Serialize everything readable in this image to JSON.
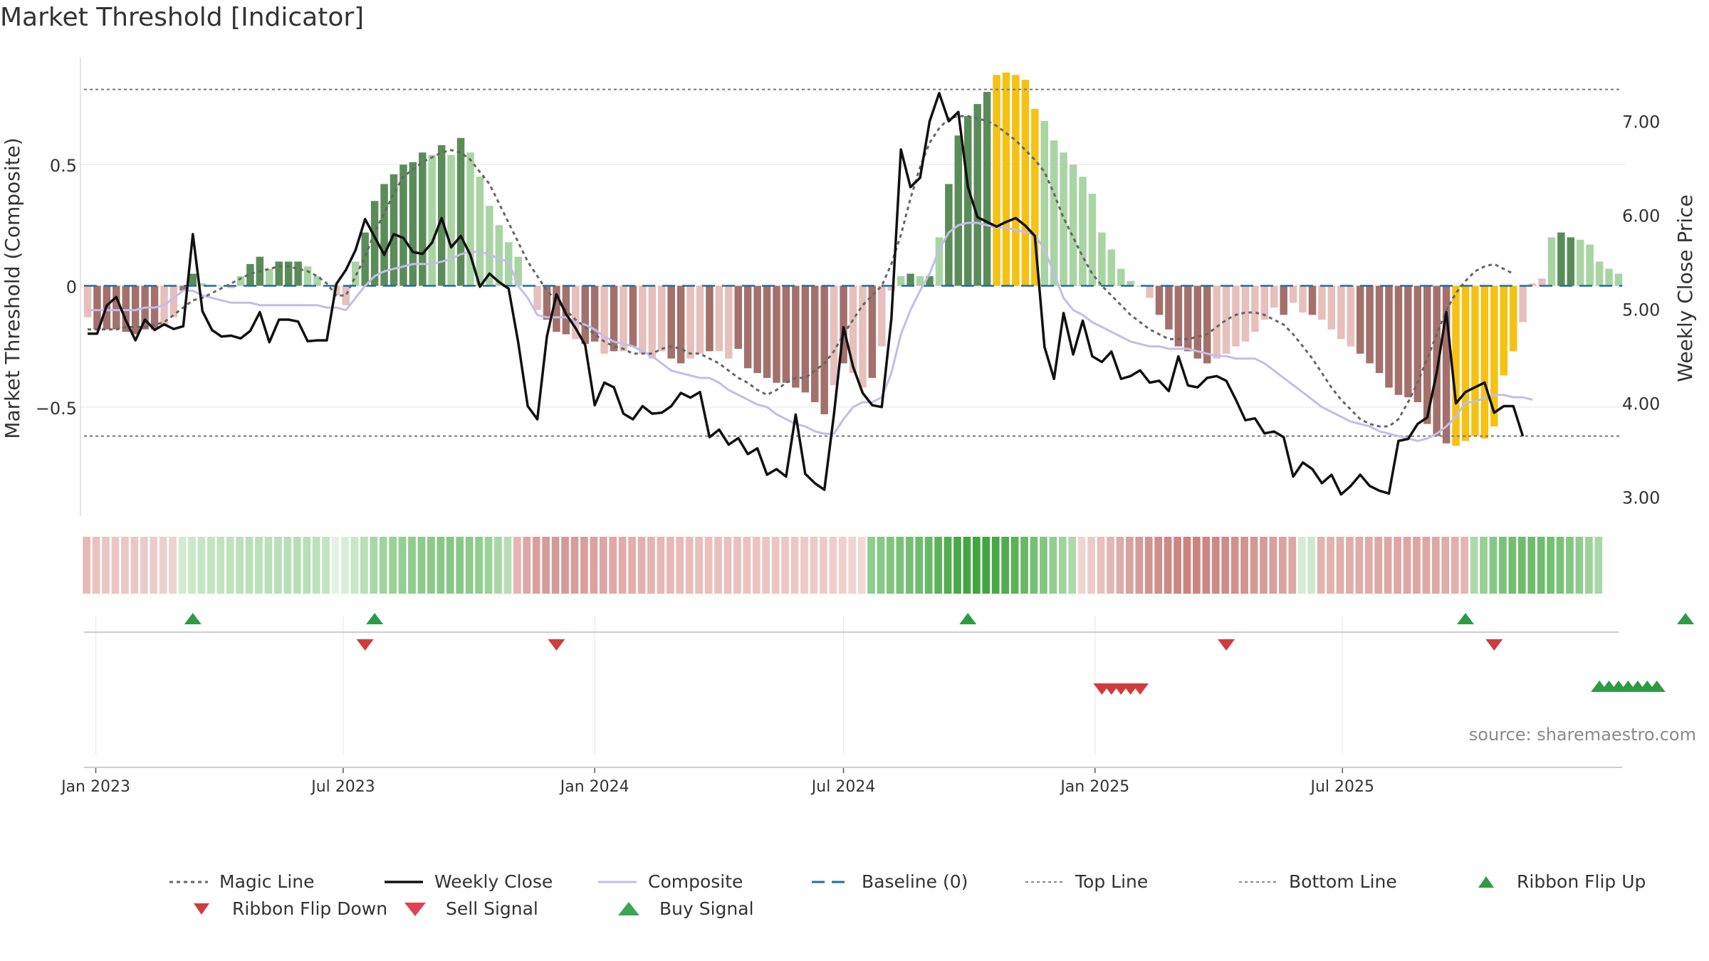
{
  "title": "Market Threshold [Indicator]",
  "source": "source: sharemaestro.com",
  "colors": {
    "strong_green": "#5a8c5a",
    "light_green": "#a9d4a3",
    "strong_red": "#a3706b",
    "light_red": "#e7bfbb",
    "gold": "#f5c113",
    "weekly_close": "#111111",
    "composite": "#c3bde8",
    "magic_line": "#666666",
    "baseline": "#1f6f9f",
    "signal_up": "#2e9b44",
    "signal_down": "#d23b3b"
  },
  "chart_data": {
    "type": "bar",
    "title": "Market Threshold [Indicator]",
    "ylabel_left": "Market Threshold (Composite)",
    "ylabel_right": "Weekly Close Price",
    "x_start": "2022-12-26",
    "frequency": "weekly",
    "x_ticks": [
      "Jan 2023",
      "Jul 2023",
      "Jan 2024",
      "Jul 2024",
      "Jan 2025",
      "Jul 2025"
    ],
    "x_tick_dates": [
      "2023-01-01",
      "2023-07-01",
      "2024-01-01",
      "2024-07-01",
      "2025-01-01",
      "2025-07-01"
    ],
    "ylim_left": [
      -0.95,
      0.95
    ],
    "y_ticks_left": [
      {
        "value": 0.5,
        "label": "0.5"
      },
      {
        "value": 0,
        "label": "0"
      },
      {
        "value": -0.5,
        "label": "−0.5"
      }
    ],
    "ylim_right": [
      2.8,
      7.7
    ],
    "y_ticks_right": [
      {
        "value": 7,
        "label": "7.00"
      },
      {
        "value": 6,
        "label": "6.00"
      },
      {
        "value": 5,
        "label": "5.00"
      },
      {
        "value": 4,
        "label": "4.00"
      },
      {
        "value": 3,
        "label": "3.00"
      }
    ],
    "top_line": 0.81,
    "bottom_line": -0.62,
    "baseline": 0,
    "histogram": [
      -0.13,
      -0.18,
      -0.18,
      -0.18,
      -0.19,
      -0.2,
      -0.18,
      -0.18,
      -0.16,
      -0.13,
      -0.02,
      0.05,
      0.01,
      0.0,
      0.0,
      -0.01,
      0.04,
      0.09,
      0.12,
      0.07,
      0.1,
      0.1,
      0.1,
      0.08,
      0.04,
      0.0,
      -0.04,
      -0.08,
      0.1,
      0.22,
      0.35,
      0.42,
      0.46,
      0.5,
      0.51,
      0.55,
      0.54,
      0.58,
      0.54,
      0.61,
      0.55,
      0.45,
      0.33,
      0.25,
      0.18,
      0.12,
      0.0,
      -0.1,
      -0.14,
      -0.19,
      -0.2,
      -0.22,
      -0.24,
      -0.23,
      -0.28,
      -0.27,
      -0.27,
      -0.25,
      -0.28,
      -0.3,
      -0.27,
      -0.3,
      -0.32,
      -0.3,
      -0.28,
      -0.27,
      -0.27,
      -0.3,
      -0.26,
      -0.34,
      -0.36,
      -0.38,
      -0.4,
      -0.4,
      -0.42,
      -0.44,
      -0.48,
      -0.53,
      -0.41,
      -0.32,
      -0.36,
      -0.42,
      -0.38,
      -0.25,
      -0.02,
      0.04,
      0.05,
      0.04,
      0.04,
      0.2,
      0.42,
      0.62,
      0.7,
      0.75,
      0.8,
      0.87,
      0.88,
      0.87,
      0.85,
      0.73,
      0.68,
      0.6,
      0.55,
      0.5,
      0.45,
      0.38,
      0.22,
      0.15,
      0.07,
      0.02,
      0.0,
      -0.05,
      -0.12,
      -0.18,
      -0.25,
      -0.27,
      -0.3,
      -0.32,
      -0.3,
      -0.28,
      -0.25,
      -0.23,
      -0.19,
      -0.14,
      -0.09,
      -0.12,
      -0.07,
      -0.11,
      -0.12,
      -0.14,
      -0.18,
      -0.22,
      -0.25,
      -0.28,
      -0.32,
      -0.36,
      -0.42,
      -0.45,
      -0.46,
      -0.48,
      -0.57,
      -0.62,
      -0.65,
      -0.66,
      -0.64,
      -0.62,
      -0.63,
      -0.58,
      -0.37,
      -0.27,
      -0.15,
      0.01,
      0.03,
      0.2,
      0.22,
      0.2,
      0.19,
      0.17,
      0.1,
      0.07,
      0.05
    ],
    "bar_colors": [
      "lr",
      "sr",
      "sr",
      "sr",
      "sr",
      "sr",
      "sr",
      "sr",
      "lr",
      "lr",
      "sr",
      "sg",
      "lg",
      "lg",
      "lg",
      "lr",
      "lg",
      "sg",
      "sg",
      "lg",
      "sg",
      "sg",
      "sg",
      "lg",
      "lg",
      "lg",
      "lr",
      "lr",
      "lg",
      "sg",
      "sg",
      "sg",
      "sg",
      "sg",
      "sg",
      "sg",
      "lg",
      "sg",
      "lg",
      "sg",
      "lg",
      "lg",
      "lg",
      "lg",
      "lg",
      "lg",
      "lg",
      "lr",
      "sr",
      "sr",
      "sr",
      "lr",
      "sr",
      "sr",
      "lr",
      "sr",
      "lr",
      "sr",
      "lr",
      "lr",
      "lr",
      "sr",
      "sr",
      "lr",
      "lr",
      "sr",
      "lr",
      "lr",
      "sr",
      "sr",
      "sr",
      "sr",
      "sr",
      "sr",
      "sr",
      "sr",
      "sr",
      "sr",
      "lr",
      "sr",
      "lr",
      "lr",
      "sr",
      "lr",
      "lr",
      "lg",
      "sg",
      "lg",
      "sg",
      "lg",
      "sg",
      "sg",
      "sg",
      "sg",
      "sg",
      "gold",
      "gold",
      "gold",
      "gold",
      "gold",
      "lg",
      "lg",
      "lg",
      "lg",
      "lg",
      "lg",
      "lg",
      "lg",
      "lg",
      "lg",
      "lg",
      "lr",
      "sr",
      "sr",
      "sr",
      "sr",
      "sr",
      "sr",
      "lr",
      "lr",
      "lr",
      "lr",
      "lr",
      "lr",
      "lr",
      "sr",
      "lr",
      "lr",
      "sr",
      "lr",
      "lr",
      "lr",
      "lr",
      "sr",
      "sr",
      "sr",
      "sr",
      "sr",
      "sr",
      "sr",
      "sr",
      "sr",
      "sr",
      "gold",
      "gold",
      "gold",
      "gold",
      "gold",
      "gold",
      "gold",
      "lr",
      "lr",
      "lr",
      "lg",
      "sg",
      "sg",
      "lg",
      "lg",
      "lg",
      "lg",
      "lg"
    ],
    "weekly_close": [
      4.74,
      4.74,
      5.04,
      5.13,
      4.88,
      4.67,
      4.89,
      4.78,
      4.84,
      4.79,
      4.82,
      5.8,
      4.98,
      4.78,
      4.71,
      4.72,
      4.69,
      4.77,
      4.97,
      4.65,
      4.89,
      4.89,
      4.87,
      4.66,
      4.67,
      4.67,
      5.27,
      5.42,
      5.63,
      5.96,
      5.77,
      5.58,
      5.8,
      5.76,
      5.61,
      5.59,
      5.71,
      5.97,
      5.66,
      5.78,
      5.58,
      5.24,
      5.38,
      5.29,
      5.22,
      4.65,
      3.97,
      3.83,
      4.71,
      5.16,
      4.95,
      4.8,
      4.62,
      3.98,
      4.22,
      4.17,
      3.89,
      3.83,
      3.97,
      3.89,
      3.9,
      3.97,
      4.11,
      4.06,
      4.12,
      3.64,
      3.72,
      3.56,
      3.63,
      3.46,
      3.52,
      3.24,
      3.3,
      3.22,
      3.88,
      3.25,
      3.15,
      3.08,
      3.88,
      4.81,
      4.39,
      4.11,
      3.98,
      3.96,
      4.9,
      6.7,
      6.3,
      6.4,
      7.0,
      7.3,
      7.0,
      7.1,
      6.3,
      5.98,
      5.93,
      5.88,
      5.93,
      5.97,
      5.89,
      5.78,
      4.6,
      4.26,
      4.96,
      4.52,
      4.88,
      4.5,
      4.44,
      4.55,
      4.26,
      4.29,
      4.35,
      4.22,
      4.24,
      4.13,
      4.5,
      4.19,
      4.17,
      4.27,
      4.29,
      4.24,
      4.04,
      3.82,
      3.84,
      3.68,
      3.7,
      3.64,
      3.22,
      3.37,
      3.3,
      3.15,
      3.24,
      3.03,
      3.12,
      3.24,
      3.12,
      3.07,
      3.04,
      3.6,
      3.62,
      3.78,
      3.85,
      4.33,
      4.97,
      4.0,
      4.12,
      4.17,
      4.22,
      3.9,
      3.97,
      3.97,
      3.65
    ],
    "composite": [
      -0.1,
      -0.1,
      -0.1,
      -0.1,
      -0.1,
      -0.1,
      -0.09,
      -0.09,
      -0.08,
      -0.05,
      -0.02,
      -0.02,
      -0.04,
      -0.05,
      -0.06,
      -0.07,
      -0.07,
      -0.07,
      -0.08,
      -0.08,
      -0.08,
      -0.08,
      -0.08,
      -0.08,
      -0.08,
      -0.09,
      -0.09,
      -0.1,
      -0.05,
      0.0,
      0.04,
      0.06,
      0.07,
      0.08,
      0.09,
      0.09,
      0.09,
      0.1,
      0.11,
      0.13,
      0.14,
      0.14,
      0.13,
      0.11,
      0.1,
      0.0,
      -0.05,
      -0.12,
      -0.13,
      -0.13,
      -0.13,
      -0.15,
      -0.16,
      -0.18,
      -0.21,
      -0.23,
      -0.24,
      -0.25,
      -0.27,
      -0.29,
      -0.32,
      -0.35,
      -0.36,
      -0.37,
      -0.38,
      -0.38,
      -0.4,
      -0.43,
      -0.45,
      -0.47,
      -0.49,
      -0.5,
      -0.53,
      -0.55,
      -0.57,
      -0.58,
      -0.6,
      -0.61,
      -0.61,
      -0.55,
      -0.5,
      -0.48,
      -0.48,
      -0.46,
      -0.36,
      -0.2,
      -0.1,
      -0.02,
      0.05,
      0.15,
      0.22,
      0.25,
      0.26,
      0.26,
      0.25,
      0.24,
      0.24,
      0.23,
      0.22,
      0.21,
      0.15,
      0.05,
      -0.05,
      -0.1,
      -0.12,
      -0.15,
      -0.17,
      -0.19,
      -0.21,
      -0.23,
      -0.24,
      -0.25,
      -0.25,
      -0.26,
      -0.26,
      -0.26,
      -0.27,
      -0.28,
      -0.29,
      -0.29,
      -0.3,
      -0.3,
      -0.3,
      -0.32,
      -0.35,
      -0.38,
      -0.41,
      -0.44,
      -0.47,
      -0.5,
      -0.52,
      -0.54,
      -0.56,
      -0.57,
      -0.58,
      -0.6,
      -0.61,
      -0.62,
      -0.63,
      -0.64,
      -0.63,
      -0.61,
      -0.58,
      -0.54,
      -0.48,
      -0.48,
      -0.46,
      -0.45,
      -0.45,
      -0.46,
      -0.46,
      -0.47
    ],
    "magic_line": [
      -0.18,
      -0.18,
      -0.18,
      -0.18,
      -0.17,
      -0.17,
      -0.17,
      -0.16,
      -0.15,
      -0.12,
      -0.09,
      -0.06,
      -0.05,
      -0.03,
      -0.01,
      0.01,
      0.03,
      0.05,
      0.06,
      0.07,
      0.08,
      0.08,
      0.07,
      0.06,
      0.04,
      0.01,
      -0.04,
      -0.04,
      0.04,
      0.12,
      0.22,
      0.3,
      0.38,
      0.45,
      0.48,
      0.51,
      0.53,
      0.55,
      0.56,
      0.55,
      0.52,
      0.47,
      0.42,
      0.34,
      0.26,
      0.18,
      0.1,
      0.04,
      -0.02,
      -0.06,
      -0.1,
      -0.14,
      -0.17,
      -0.2,
      -0.23,
      -0.25,
      -0.26,
      -0.28,
      -0.28,
      -0.28,
      -0.26,
      -0.25,
      -0.26,
      -0.28,
      -0.28,
      -0.3,
      -0.32,
      -0.35,
      -0.38,
      -0.4,
      -0.43,
      -0.45,
      -0.43,
      -0.4,
      -0.38,
      -0.38,
      -0.35,
      -0.32,
      -0.27,
      -0.2,
      -0.14,
      -0.08,
      -0.04,
      0.0,
      0.09,
      0.21,
      0.36,
      0.49,
      0.59,
      0.65,
      0.69,
      0.7,
      0.7,
      0.69,
      0.68,
      0.66,
      0.63,
      0.6,
      0.56,
      0.52,
      0.47,
      0.38,
      0.28,
      0.2,
      0.12,
      0.05,
      0.0,
      -0.04,
      -0.08,
      -0.12,
      -0.15,
      -0.18,
      -0.2,
      -0.22,
      -0.22,
      -0.22,
      -0.21,
      -0.2,
      -0.17,
      -0.14,
      -0.12,
      -0.11,
      -0.11,
      -0.12,
      -0.14,
      -0.16,
      -0.2,
      -0.25,
      -0.3,
      -0.36,
      -0.42,
      -0.47,
      -0.51,
      -0.55,
      -0.57,
      -0.58,
      -0.58,
      -0.55,
      -0.48,
      -0.4,
      -0.3,
      -0.2,
      -0.1,
      -0.03,
      0.02,
      0.06,
      0.08,
      0.09,
      0.07,
      0.05
    ],
    "ribbon_colors": [
      "#e8b8b6",
      "#e8c2c0",
      "#e8c6c4",
      "#e9c6c4",
      "#e9c8c6",
      "#eac8c6",
      "#eacbc9",
      "#ebcdcb",
      "#ebd0ce",
      "#edd3d1",
      "#d2ebd1",
      "#cbe8c9",
      "#c5e5c3",
      "#c2e4c0",
      "#c0e3be",
      "#bfe2bd",
      "#bde1bb",
      "#bce1ba",
      "#bbe0b9",
      "#bae0b8",
      "#b9dfb7",
      "#b8dfb6",
      "#b7deb5",
      "#b8dfb6",
      "#bce1ba",
      "#c2e4c0",
      "#e4f2e3",
      "#d9eed8",
      "#c9e7c7",
      "#b8dfb6",
      "#a9d8a7",
      "#a0d49e",
      "#99d197",
      "#94ce92",
      "#90cc8e",
      "#8dcb8b",
      "#8bca89",
      "#89c987",
      "#88c886",
      "#88c886",
      "#8bca89",
      "#92cd90",
      "#9cd29a",
      "#a8d7a6",
      "#b6deb4",
      "#e6b6b3",
      "#dda7a4",
      "#d9a19e",
      "#d59c99",
      "#d49a97",
      "#d49a97",
      "#d69d9a",
      "#d8a09d",
      "#daa3a0",
      "#dca6a3",
      "#dea9a6",
      "#e0aca9",
      "#e2afac",
      "#e3b2af",
      "#e4b4b1",
      "#e6b7b4",
      "#e7b9b6",
      "#e8bbb8",
      "#e9bdba",
      "#e9bebb",
      "#eabfbc",
      "#eac0bd",
      "#eac0bd",
      "#eac1be",
      "#ebc2bf",
      "#ebc3c0",
      "#ecc5c2",
      "#ecc6c3",
      "#edc7c4",
      "#edc8c5",
      "#eec9c6",
      "#eecac7",
      "#efcbc8",
      "#efcdca",
      "#f0cfcc",
      "#f1d3d1",
      "#f2d8d6",
      "#8fcc8d",
      "#88c886",
      "#80c47e",
      "#7bc179",
      "#76bf74",
      "#70bc6e",
      "#68b866",
      "#5db35b",
      "#52ad50",
      "#4aa948",
      "#45a643",
      "#42a540",
      "#43a541",
      "#48a846",
      "#50ac4e",
      "#5bb259",
      "#68b866",
      "#76bf74",
      "#84c582",
      "#92cd90",
      "#a0d49e",
      "#add9ab",
      "#f0d4d2",
      "#ebcbc8",
      "#e6c1be",
      "#e1b7b4",
      "#dcada9",
      "#d8a39f",
      "#d49b97",
      "#d1948f",
      "#cf8e89",
      "#cd8984",
      "#cc8580",
      "#cc837e",
      "#cc847f",
      "#cd8681",
      "#ce8984",
      "#cf8c87",
      "#d0908b",
      "#d2948f",
      "#d49893",
      "#d59c97",
      "#d7a09b",
      "#d9a4a0",
      "#dba8a4",
      "#d5ebd4",
      "#cfe8ce",
      "#e3b3b0",
      "#e3b1ae",
      "#e2afac",
      "#e1adaa",
      "#e0aba8",
      "#e0aba8",
      "#dfa9a6",
      "#dfa8a5",
      "#dea7a4",
      "#dea6a3",
      "#dea6a3",
      "#dea7a4",
      "#dfa8a5",
      "#e0aba8",
      "#e2afac",
      "#e5b5b2",
      "#acd9aa",
      "#98d096",
      "#88c886",
      "#7cc27a",
      "#74be72",
      "#70bc6e",
      "#6fbc6d",
      "#71bd6f",
      "#75bf73",
      "#7bc179",
      "#84c582",
      "#8fcb8d",
      "#9cd29a",
      "#aad8a8"
    ],
    "signals_row1_up": [
      11,
      30,
      92,
      144,
      167
    ],
    "signals_row1_down": [
      29,
      49,
      119,
      147
    ],
    "signals_row2_down": [
      106,
      107,
      108,
      109,
      110
    ],
    "signals_row2_up": [
      158,
      159,
      160,
      161,
      162,
      163,
      164
    ]
  },
  "legend": [
    {
      "label": "Magic Line",
      "kind": "magic"
    },
    {
      "label": "Weekly Close",
      "kind": "close"
    },
    {
      "label": "Composite",
      "kind": "composite"
    },
    {
      "label": "Baseline (0)",
      "kind": "baseline"
    },
    {
      "label": "Top Line",
      "kind": "topline"
    },
    {
      "label": "Bottom Line",
      "kind": "bottomline"
    },
    {
      "label": "Ribbon Flip Up",
      "kind": "flipup"
    },
    {
      "label": "Ribbon Flip Down",
      "kind": "flipdown"
    },
    {
      "label": "Sell Signal",
      "kind": "sell"
    },
    {
      "label": "Buy Signal",
      "kind": "buy"
    }
  ]
}
